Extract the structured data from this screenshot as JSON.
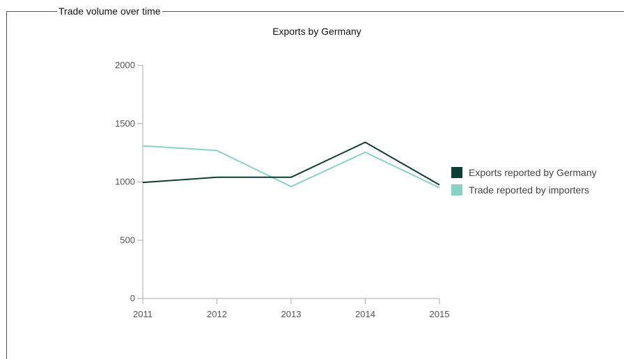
{
  "panel": {
    "title": "Trade volume over time"
  },
  "chart_data": {
    "type": "line",
    "title": "Exports by Germany",
    "xlabel": "",
    "ylabel": "",
    "x": [
      2011,
      2012,
      2013,
      2014,
      2015
    ],
    "x_tick_labels": [
      "2011",
      "2012",
      "2013",
      "2014",
      "2015"
    ],
    "ylim": [
      0,
      2000
    ],
    "y_ticks": [
      0,
      500,
      1000,
      1500,
      2000
    ],
    "y_tick_labels": [
      "0",
      "500",
      "1000",
      "1500",
      "2000"
    ],
    "grid": false,
    "legend_position": "right",
    "series": [
      {
        "name": "Exports reported by Germany",
        "color": "#0b3d33",
        "values": [
          995,
          1040,
          1040,
          1340,
          975
        ]
      },
      {
        "name": "Trade reported by importers",
        "color": "#86d3c4",
        "values": [
          1310,
          1270,
          960,
          1255,
          950
        ]
      }
    ]
  }
}
